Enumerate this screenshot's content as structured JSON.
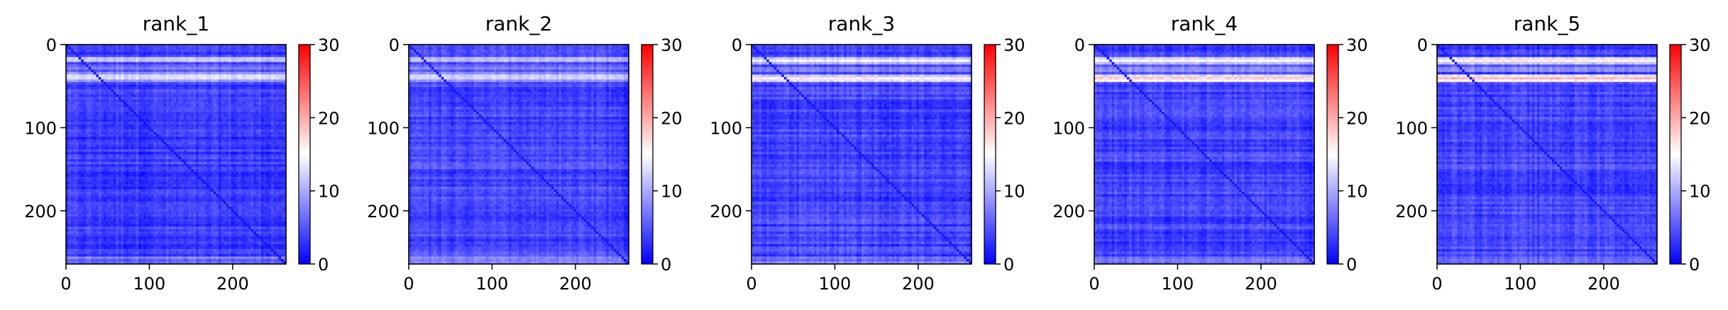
{
  "chart_data": {
    "type": "heatmap",
    "colormap": "bwr",
    "colormap_colors": [
      "#0000ff",
      "#ffffff",
      "#ff0000"
    ],
    "axis_extent": [
      0,
      264
    ],
    "x_ticks": [
      0,
      100,
      200
    ],
    "y_ticks": [
      0,
      100,
      200
    ],
    "colorbar": {
      "range": [
        0,
        30
      ],
      "ticks": [
        0,
        10,
        20,
        30
      ]
    },
    "panels": [
      {
        "title": "rank_1",
        "base_value": 3.5,
        "bright_rows": [
          {
            "start": 14,
            "end": 22,
            "value": 14
          },
          {
            "start": 34,
            "end": 44,
            "value": 15
          },
          {
            "start": 24,
            "end": 32,
            "value": 8
          }
        ],
        "diagonal_value": 1.0
      },
      {
        "title": "rank_2",
        "base_value": 4.0,
        "bright_rows": [
          {
            "start": 14,
            "end": 22,
            "value": 13
          },
          {
            "start": 34,
            "end": 44,
            "value": 14
          },
          {
            "start": 24,
            "end": 32,
            "value": 8
          }
        ],
        "diagonal_value": 1.2
      },
      {
        "title": "rank_3",
        "base_value": 4.0,
        "bright_rows": [
          {
            "start": 14,
            "end": 24,
            "value": 15
          },
          {
            "start": 36,
            "end": 46,
            "value": 17
          },
          {
            "start": 26,
            "end": 34,
            "value": 9
          }
        ],
        "diagonal_value": 1.2
      },
      {
        "title": "rank_4",
        "base_value": 4.0,
        "bright_rows": [
          {
            "start": 14,
            "end": 24,
            "value": 16
          },
          {
            "start": 36,
            "end": 46,
            "value": 19
          },
          {
            "start": 26,
            "end": 34,
            "value": 10
          }
        ],
        "diagonal_value": 1.2
      },
      {
        "title": "rank_5",
        "base_value": 4.0,
        "bright_rows": [
          {
            "start": 14,
            "end": 24,
            "value": 17
          },
          {
            "start": 36,
            "end": 46,
            "value": 20
          },
          {
            "start": 26,
            "end": 34,
            "value": 10
          }
        ],
        "diagonal_value": 1.2
      }
    ]
  }
}
